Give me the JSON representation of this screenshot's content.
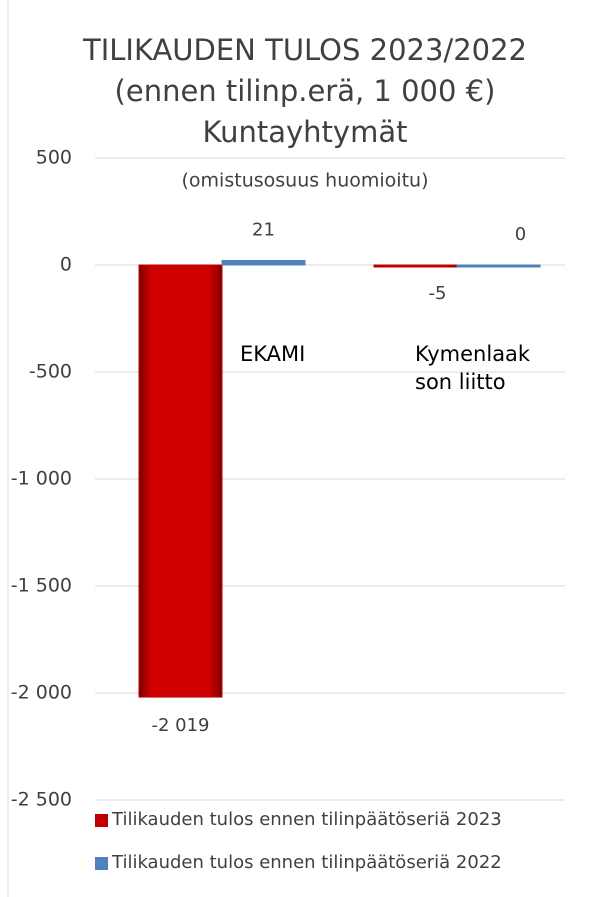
{
  "chart_data": {
    "type": "bar",
    "title": [
      "TILIKAUDEN TULOS 2023/2022",
      "(ennen tilinp.erä, 1 000 €)",
      "Kuntayhtymät"
    ],
    "subtitle": "(omistusosuus huomioitu)",
    "categories": [
      "EKAMI",
      "Kymenlaakson liitto"
    ],
    "series": [
      {
        "name": "Tilikauden tulos ennen tilinpäätöseriä 2023",
        "color": "#c00000",
        "values": [
          -2019,
          -5
        ],
        "value_labels": [
          "-2 019",
          "-5"
        ]
      },
      {
        "name": "Tilikauden tulos ennen tilinpäätöseriä 2022",
        "color": "#4f81bd",
        "values": [
          21,
          0
        ],
        "value_labels": [
          "21",
          "0"
        ]
      }
    ],
    "ylim": [
      -2500,
      500
    ],
    "yticks": [
      500,
      0,
      -500,
      {
        "value": -1000,
        "label": "-1 000"
      },
      {
        "value": -1500,
        "label": "-1 500"
      },
      {
        "value": -2000,
        "label": "-2 000"
      },
      {
        "value": -2500,
        "label": "-2 500"
      }
    ],
    "grid": true,
    "legend": "bottom-left"
  }
}
